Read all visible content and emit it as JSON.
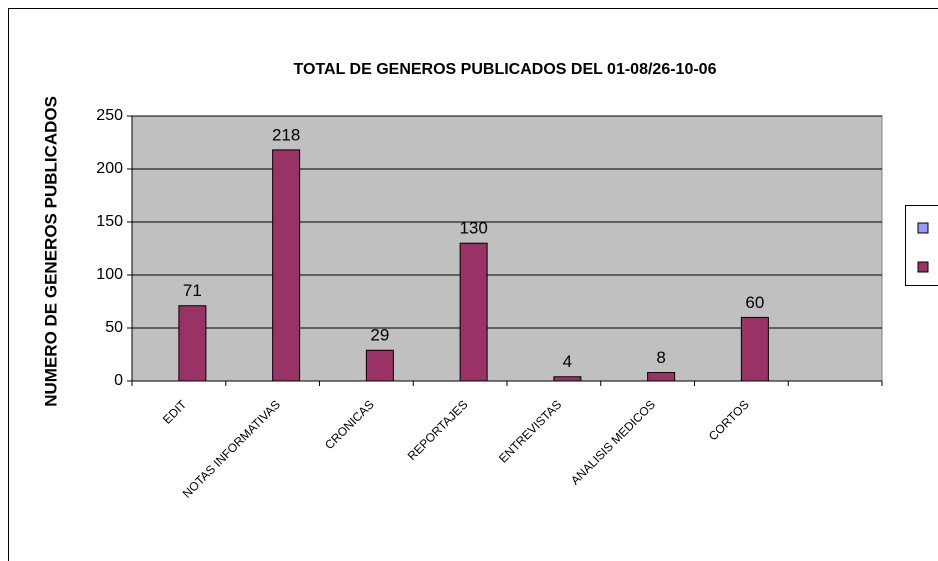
{
  "chart_data": {
    "type": "bar",
    "title": "TOTAL DE GENEROS PUBLICADOS DEL 01-08/26-10-06",
    "y_label": "NUMERO DE GENEROS PUBLICADOS",
    "categories": [
      "EDIT",
      "NOTAS INFORMATIVAS",
      "CRONICAS",
      "REPORTAJES",
      "ENTREVISTAS",
      "ANALISIS MEDICOS",
      "CORTOS",
      null
    ],
    "series": [
      {
        "color": "#9999ff",
        "values": [
          null,
          null,
          null,
          null,
          null,
          null,
          null,
          null
        ]
      },
      {
        "color": "#993366",
        "values": [
          71,
          218,
          29,
          130,
          4,
          8,
          60,
          null
        ]
      }
    ],
    "ylim": [
      0,
      250
    ],
    "yticks": [
      0,
      50,
      100,
      150,
      200,
      250
    ],
    "grid": true,
    "legend": "right"
  }
}
